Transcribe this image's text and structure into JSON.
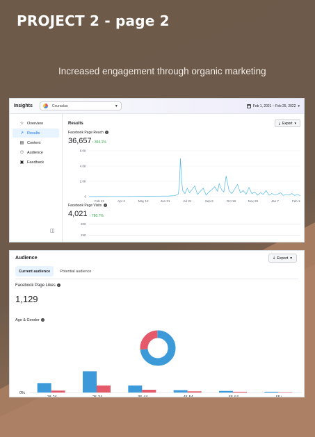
{
  "header": {
    "title": "PROJECT  2 - page 2",
    "subtitle": "Increased engagement through organic marketing"
  },
  "colors": {
    "background": "#6e5a49",
    "line": "#4bb8e8",
    "male": "#3d9ad8",
    "female": "#e45a6a",
    "accent": "#1877f2"
  },
  "insights": {
    "app_title": "Insights",
    "page_selector": {
      "icon": "page-avatar-icon",
      "value": "Coursalao"
    },
    "date_range": "Feb 1, 2021 – Feb 25, 2022",
    "sidebar": [
      {
        "label": "Overview",
        "icon": "star-icon",
        "active": false
      },
      {
        "label": "Results",
        "icon": "trend-icon",
        "active": true
      },
      {
        "label": "Content",
        "icon": "content-icon",
        "active": false
      },
      {
        "label": "Audience",
        "icon": "people-icon",
        "active": false
      },
      {
        "label": "Feedback",
        "icon": "feedback-icon",
        "active": false
      }
    ],
    "results_title": "Results",
    "export_label": "Export",
    "reach": {
      "label": "Facebook Page Reach",
      "value": "36,657",
      "change": "↑ 354.1%"
    },
    "visits": {
      "label": "Facebook Page Visits",
      "value": "4,021",
      "change": "↑ 780.7%",
      "y_ticks": [
        "200",
        "150"
      ]
    }
  },
  "chart_data": [
    {
      "type": "line",
      "title": "Facebook Page Reach",
      "y_ticks": [
        "6.0K",
        "4.0K",
        "2.0K",
        "0"
      ],
      "ylim": [
        0,
        6000
      ],
      "x_ticks": [
        "Feb 21",
        "Apr 2",
        "May 12",
        "Jun 21",
        "Jul 31",
        "Sep 9",
        "Oct 19",
        "Nov 28",
        "Jan 7",
        "Feb 16"
      ],
      "x_range": [
        0,
        370
      ],
      "grid": true,
      "series": [
        {
          "x": [
            0,
            20,
            40,
            60,
            80,
            100,
            120,
            140,
            150,
            156,
            158,
            160,
            162,
            164,
            168,
            172,
            176,
            180,
            185,
            190,
            195,
            200,
            205,
            210,
            215,
            220,
            225,
            228,
            232,
            236,
            240,
            245,
            250,
            255,
            260,
            265,
            270,
            275,
            280,
            285,
            290,
            295,
            300,
            305,
            310,
            315,
            320,
            325,
            330,
            335,
            340,
            345,
            350,
            355,
            360,
            365,
            370
          ],
          "values": [
            0,
            10,
            20,
            15,
            30,
            40,
            60,
            80,
            120,
            300,
            1200,
            5000,
            2200,
            800,
            400,
            1100,
            500,
            900,
            1400,
            300,
            700,
            1100,
            200,
            600,
            900,
            1300,
            700,
            1700,
            900,
            600,
            2700,
            800,
            400,
            1000,
            1600,
            500,
            800,
            300,
            1200,
            400,
            600,
            200,
            500,
            300,
            800,
            200,
            400,
            250,
            300,
            500,
            150,
            300,
            200,
            400,
            150,
            300,
            100
          ]
        }
      ]
    },
    {
      "type": "bar",
      "title": "Age & Gender",
      "categories": [
        "18-24",
        "25-34",
        "35-44",
        "45-54",
        "55-64",
        "65+"
      ],
      "ylim": [
        0,
        30
      ],
      "y_ticks": [
        "0%"
      ],
      "series": [
        {
          "values": [
            12,
            27,
            9,
            3,
            2,
            1
          ]
        },
        {
          "values": [
            2.5,
            9,
            3.5,
            1.5,
            1,
            0.5
          ]
        }
      ]
    },
    {
      "type": "pie",
      "title": "",
      "values": [
        74,
        26
      ]
    }
  ],
  "audience": {
    "title": "Audience",
    "export_label": "Export",
    "tabs": [
      {
        "label": "Current audience",
        "active": true
      },
      {
        "label": "Potential audience",
        "active": false
      }
    ],
    "likes_label": "Facebook Page Likes",
    "likes_value": "1,129",
    "age_gender_label": "Age & Gender"
  }
}
